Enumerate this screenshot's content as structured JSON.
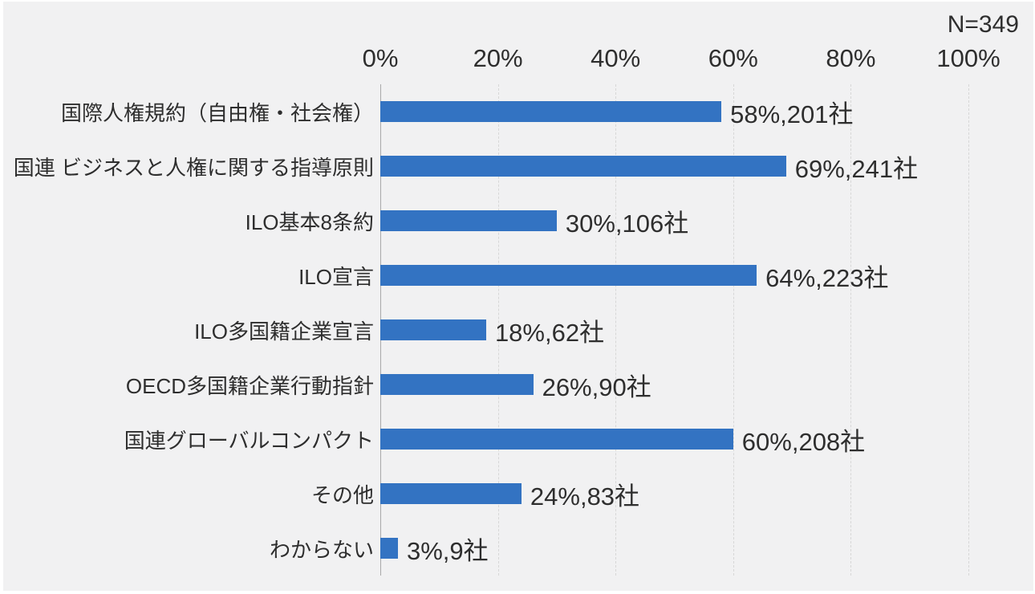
{
  "chart_data": {
    "type": "bar",
    "orientation": "horizontal",
    "n_label": "N=349",
    "categories": [
      "国際人権規約（自由権・社会権）",
      "国連 ビジネスと人権に関する指導原則",
      "ILO基本8条約",
      "ILO宣言",
      "ILO多国籍企業宣言",
      "OECD多国籍企業行動指針",
      "国連グローバルコンパクト",
      "その他",
      "わからない"
    ],
    "values_pct": [
      58,
      69,
      30,
      64,
      18,
      26,
      60,
      24,
      3
    ],
    "counts_companies": [
      201,
      241,
      106,
      223,
      62,
      90,
      208,
      83,
      9
    ],
    "value_labels": [
      "58%,201社",
      "69%,241社",
      "30%,106社",
      "64%,223社",
      "18%,62社",
      "26%,90社",
      "60%,208社",
      "24%,83社",
      "3%,9社"
    ],
    "x_axis": {
      "tick_labels": [
        "0%",
        "20%",
        "40%",
        "60%",
        "80%",
        "100%"
      ],
      "min": 0,
      "max": 100,
      "gridlines": "vertical"
    },
    "colors": {
      "bar": "#3373C2",
      "background": "#F1F1F2",
      "axis_line": "#A9A9A9",
      "gridline": "#D7D7D7",
      "text": "#2E2E2E"
    }
  }
}
